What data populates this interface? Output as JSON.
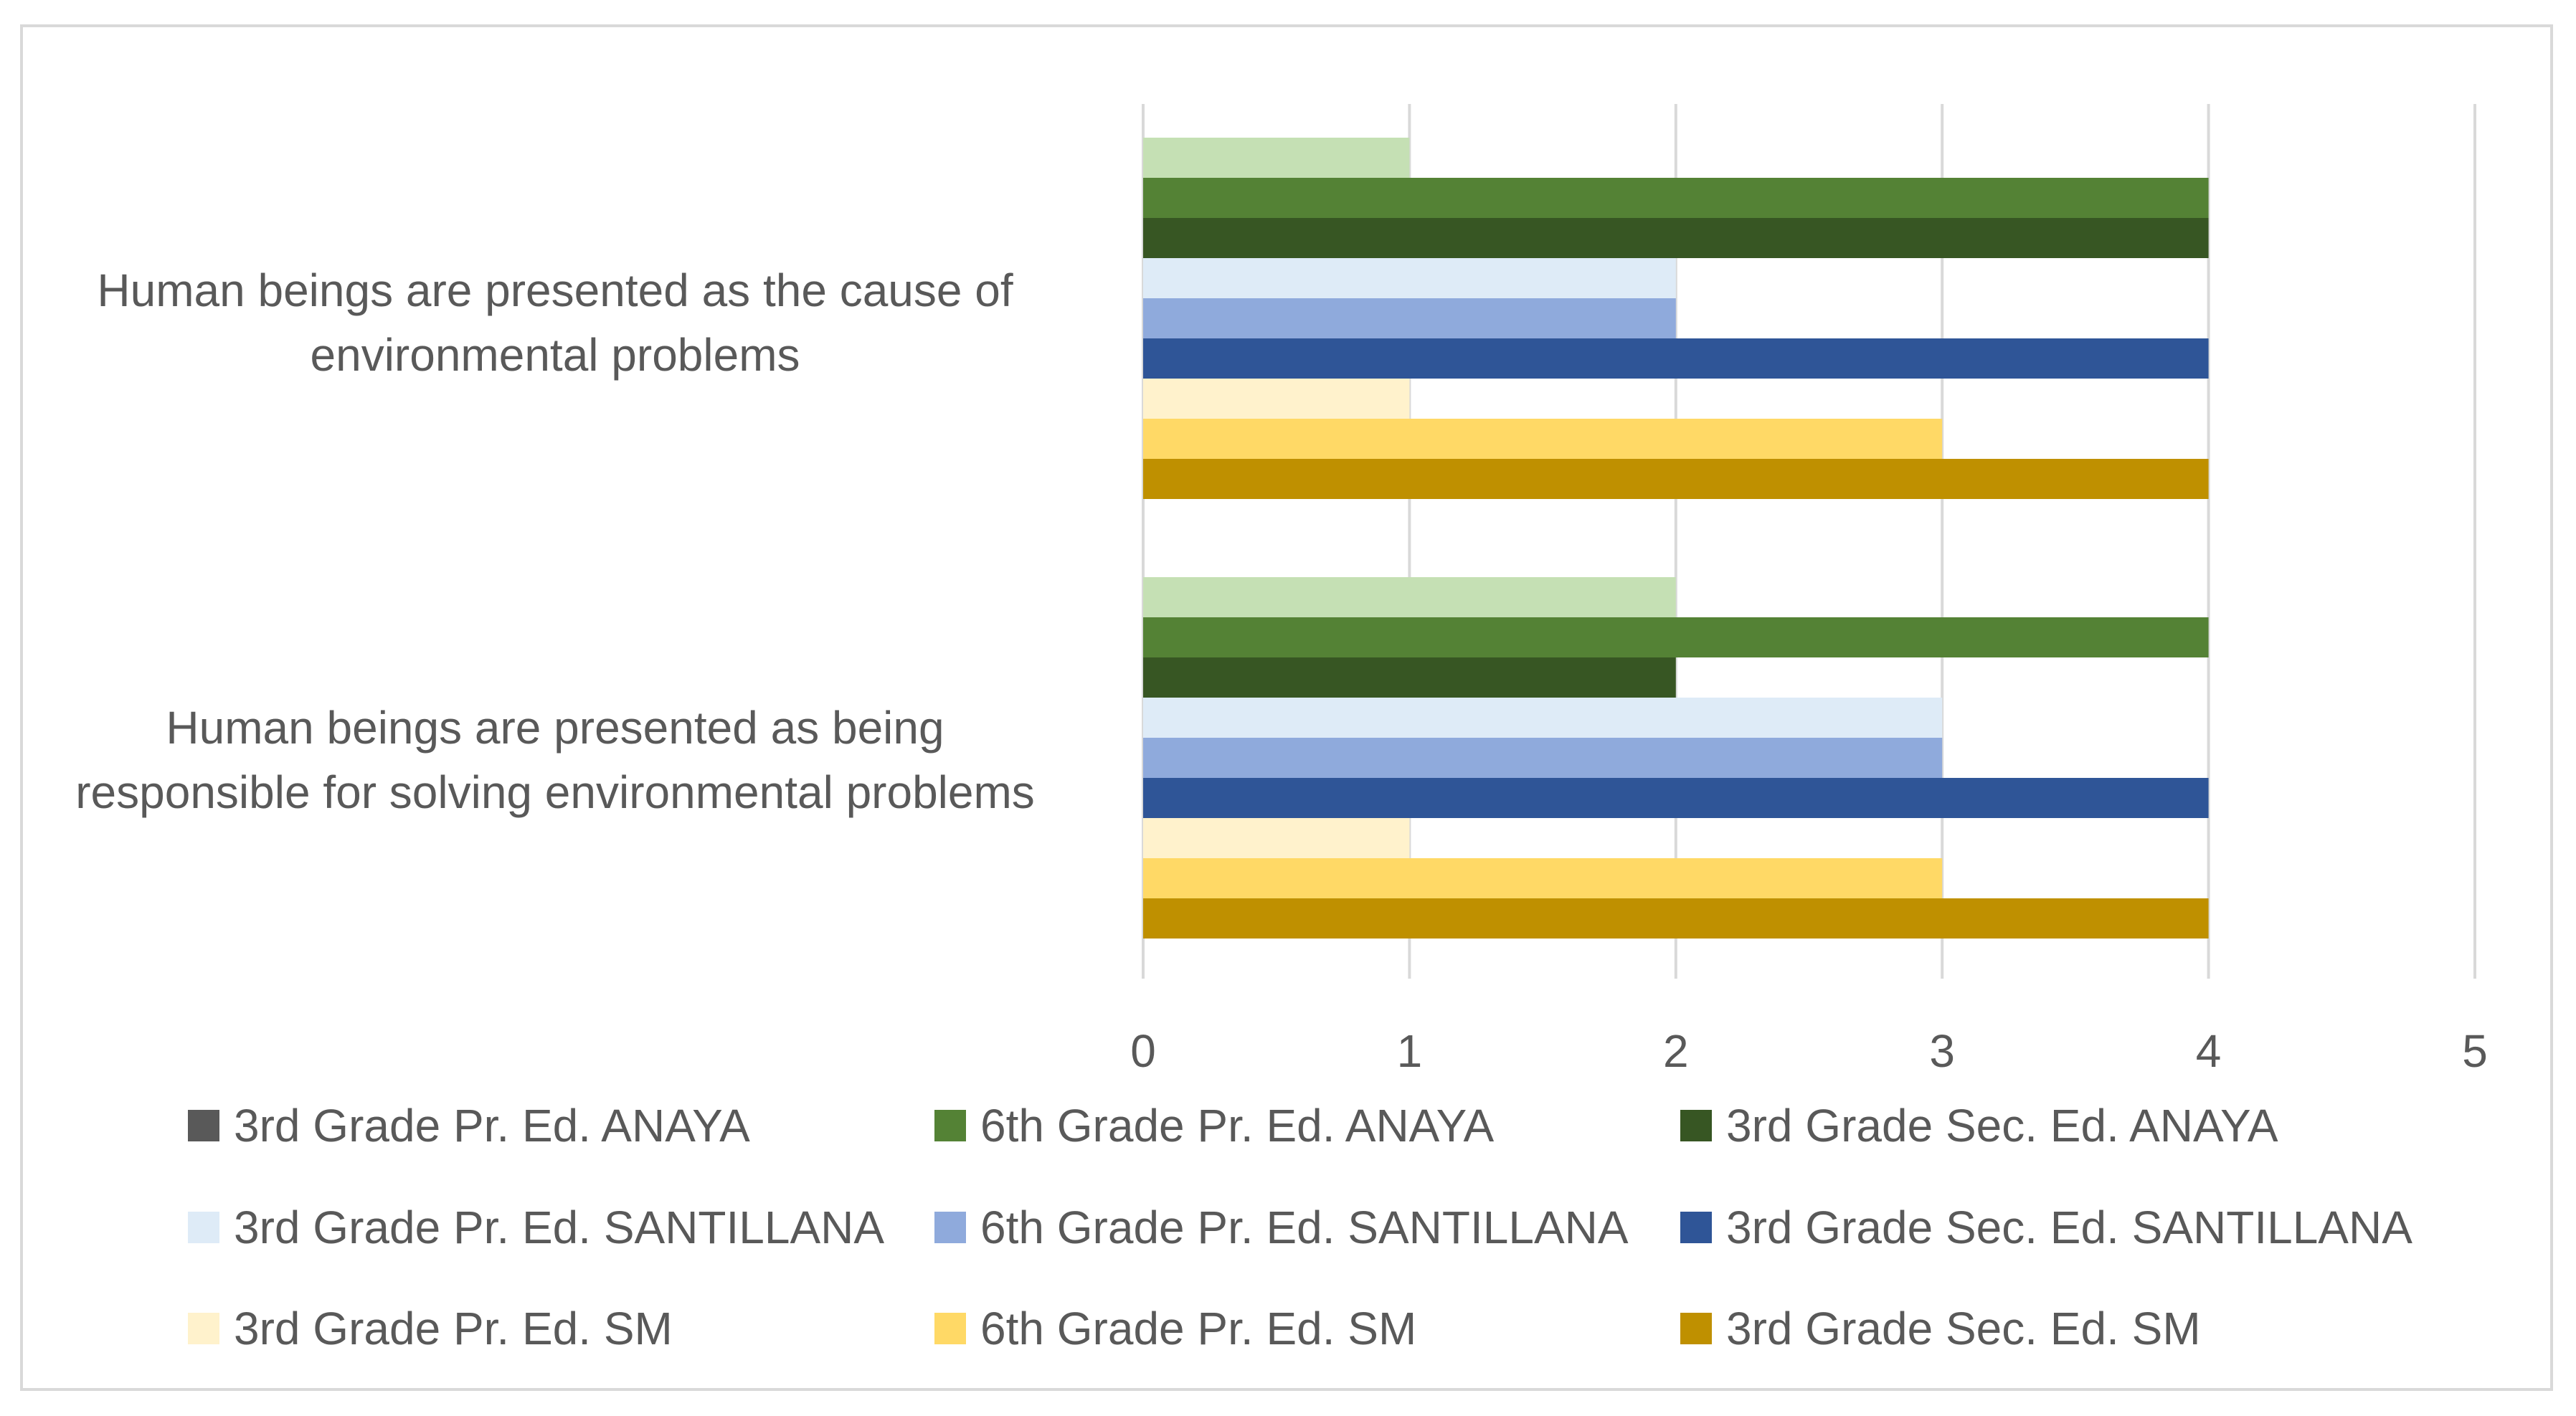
{
  "chart_data": {
    "type": "bar",
    "orientation": "horizontal",
    "title": "",
    "xlabel": "",
    "ylabel": "",
    "xlim": [
      0,
      5
    ],
    "x_ticks": [
      "0",
      "1",
      "2",
      "3",
      "4",
      "5"
    ],
    "grid": true,
    "legend_position": "bottom",
    "categories": [
      "Human beings are presented as the cause of environmental problems",
      "Human beings are presented as being responsible for solving environmental problems"
    ],
    "category_label_lines": [
      [
        "Human beings are presented as the cause of",
        "environmental problems"
      ],
      [
        "Human beings are presented as being",
        "responsible for solving environmental problems"
      ]
    ],
    "series": [
      {
        "name": "3rd Grade Pr. Ed. ANAYA",
        "color": "#c5e0b4",
        "legend_color": "#595959",
        "values": [
          1,
          2
        ]
      },
      {
        "name": "6th Grade Pr. Ed. ANAYA",
        "color": "#548235",
        "values": [
          4,
          4
        ]
      },
      {
        "name": "3rd Grade Sec. Ed. ANAYA",
        "color": "#375623",
        "values": [
          4,
          2
        ]
      },
      {
        "name": "3rd Grade Pr. Ed. SANTILLANA",
        "color": "#deebf7",
        "values": [
          2,
          3
        ]
      },
      {
        "name": "6th Grade Pr. Ed. SANTILLANA",
        "color": "#8faadc",
        "values": [
          2,
          3
        ]
      },
      {
        "name": "3rd Grade Sec. Ed. SANTILLANA",
        "color": "#2f5597",
        "values": [
          4,
          4
        ]
      },
      {
        "name": "3rd Grade Pr. Ed. SM",
        "color": "#fff2cc",
        "values": [
          1,
          1
        ]
      },
      {
        "name": "6th Grade Pr. Ed. SM",
        "color": "#ffd966",
        "values": [
          3,
          3
        ]
      },
      {
        "name": "3rd Grade Sec. Ed. SM",
        "color": "#bf9000",
        "values": [
          4,
          4
        ]
      }
    ]
  }
}
